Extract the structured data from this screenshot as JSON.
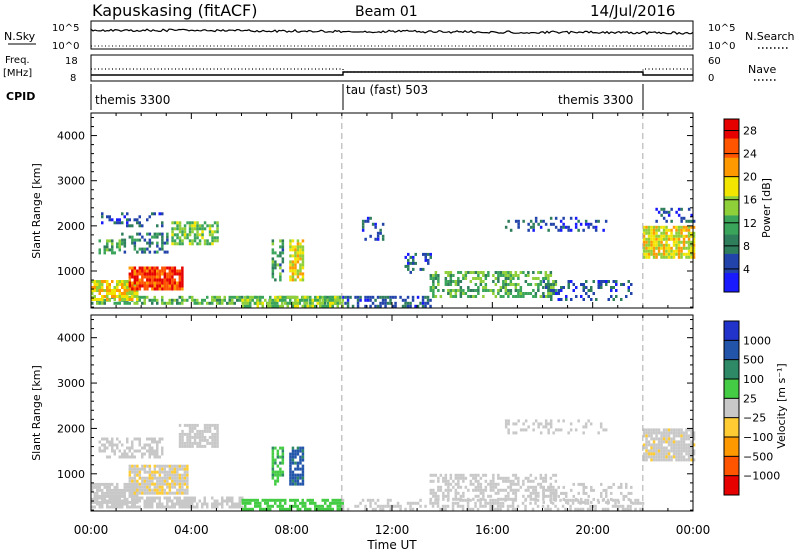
{
  "header": {
    "station": "Kapuskasing (fitACF)",
    "beam": "Beam 01",
    "date": "14/Jul/2016"
  },
  "panels": {
    "nsky_label": "N.Sky",
    "nsearch_label": "N.Search",
    "freq_label": "Freq.",
    "freq_unit": "[MHz]",
    "nave_label": "Nave",
    "cpid_label": "CPID",
    "exp10_5": "10^5",
    "exp10_0": "10^0",
    "freq_ticks": [
      "18",
      "8"
    ],
    "nave_ticks": [
      "60",
      "0"
    ]
  },
  "cpid_segments": [
    {
      "name": "themis 3300",
      "start": 0,
      "end": 10
    },
    {
      "name": "tau (fast) 503",
      "start": 10,
      "end": 22
    },
    {
      "name": "themis 3300",
      "start": 22,
      "end": 24
    }
  ],
  "colors": {
    "power": [
      "#1a1aff",
      "#2244aa",
      "#2e7d5b",
      "#3aa55a",
      "#8fcf3a",
      "#f2e600",
      "#ff9900",
      "#ff5500",
      "#e60000"
    ],
    "velocity": [
      "#e60000",
      "#ff5500",
      "#ff9900",
      "#ffcc33",
      "#c8c8c8",
      "#44cc44",
      "#2e8a66",
      "#2255aa",
      "#2233cc"
    ]
  },
  "chart_data": [
    {
      "type": "heatmap",
      "quantity": "power",
      "ylabel": "Slant Range [km]",
      "xlabel": "Time UT",
      "xlim": [
        0,
        24
      ],
      "ylim": [
        180,
        4500
      ],
      "x_ticks": [
        "00:00",
        "04:00",
        "08:00",
        "12:00",
        "16:00",
        "20:00",
        "00:00"
      ],
      "y_ticks": [
        1000,
        2000,
        3000,
        4000
      ],
      "colorbar_label": "Power [dB]",
      "colorbar_ticks": [
        "4",
        "8",
        "12",
        "16",
        "20",
        "24",
        "28"
      ],
      "colorbar_range": [
        0,
        30
      ],
      "dashed_times": [
        10,
        22
      ],
      "blobs": [
        {
          "t0": 0,
          "t1": 10,
          "r0": 300,
          "r1": 450,
          "level": 12,
          "density": 0.55
        },
        {
          "t0": 0,
          "t1": 1.8,
          "r0": 350,
          "r1": 800,
          "level": 18,
          "density": 0.85
        },
        {
          "t0": 1.5,
          "t1": 3.6,
          "r0": 600,
          "r1": 1100,
          "level": 26,
          "density": 0.9
        },
        {
          "t0": 0.3,
          "t1": 1.2,
          "r0": 1400,
          "r1": 1700,
          "level": 12,
          "density": 0.6
        },
        {
          "t0": 1.2,
          "t1": 3.0,
          "r0": 1400,
          "r1": 1850,
          "level": 8,
          "density": 0.5
        },
        {
          "t0": 3.2,
          "t1": 5.0,
          "r0": 1600,
          "r1": 2100,
          "level": 14,
          "density": 0.7
        },
        {
          "t0": 0.4,
          "t1": 2.8,
          "r0": 2000,
          "r1": 2300,
          "level": 6,
          "density": 0.35
        },
        {
          "t0": 7.2,
          "t1": 7.6,
          "r0": 800,
          "r1": 1700,
          "level": 10,
          "density": 0.6
        },
        {
          "t0": 7.9,
          "t1": 8.4,
          "r0": 800,
          "r1": 1700,
          "level": 18,
          "density": 0.8
        },
        {
          "t0": 6.0,
          "t1": 10.0,
          "r0": 200,
          "r1": 450,
          "level": 14,
          "density": 0.7
        },
        {
          "t0": 10,
          "t1": 13.5,
          "r0": 220,
          "r1": 450,
          "level": 6,
          "density": 0.5
        },
        {
          "t0": 13.5,
          "t1": 18.5,
          "r0": 450,
          "r1": 1000,
          "level": 12,
          "density": 0.55
        },
        {
          "t0": 12.5,
          "t1": 13.5,
          "r0": 1000,
          "r1": 1400,
          "level": 6,
          "density": 0.4
        },
        {
          "t0": 18.0,
          "t1": 21.5,
          "r0": 400,
          "r1": 800,
          "level": 6,
          "density": 0.35
        },
        {
          "t0": 16.5,
          "t1": 20.5,
          "r0": 1900,
          "r1": 2200,
          "level": 5,
          "density": 0.3
        },
        {
          "t0": 22.0,
          "t1": 24,
          "r0": 1300,
          "r1": 2000,
          "level": 18,
          "density": 0.85
        },
        {
          "t0": 22.5,
          "t1": 24,
          "r0": 2100,
          "r1": 2400,
          "level": 5,
          "density": 0.35
        },
        {
          "t0": 10.8,
          "t1": 11.6,
          "r0": 1700,
          "r1": 2200,
          "level": 6,
          "density": 0.25
        }
      ]
    },
    {
      "type": "heatmap",
      "quantity": "velocity",
      "ylabel": "Slant Range [km]",
      "xlabel": "Time UT",
      "xlim": [
        0,
        24
      ],
      "ylim": [
        180,
        4500
      ],
      "x_ticks": [
        "00:00",
        "04:00",
        "08:00",
        "12:00",
        "16:00",
        "20:00",
        "00:00"
      ],
      "y_ticks": [
        1000,
        2000,
        3000,
        4000
      ],
      "colorbar_label": "Velocity [m s⁻¹]",
      "colorbar_ticks": [
        "1000",
        "500",
        "100",
        "25",
        "−25",
        "−100",
        "−500",
        "−1000"
      ],
      "colorbar_range": [
        -1000,
        1000
      ],
      "dashed_times": [
        10,
        22
      ],
      "blobs": [
        {
          "t0": 0,
          "t1": 1.8,
          "r0": 350,
          "r1": 800,
          "level": 0,
          "density": 0.85
        },
        {
          "t0": 1.5,
          "t1": 3.8,
          "r0": 600,
          "r1": 1200,
          "level": -90,
          "density": 0.9
        },
        {
          "t0": 0,
          "t1": 6.0,
          "r0": 250,
          "r1": 500,
          "level": 0,
          "density": 0.75
        },
        {
          "t0": 3.5,
          "t1": 5.0,
          "r0": 1600,
          "r1": 2100,
          "level": 0,
          "density": 0.7
        },
        {
          "t0": 0.3,
          "t1": 2.8,
          "r0": 1400,
          "r1": 1800,
          "level": 0,
          "density": 0.5
        },
        {
          "t0": 7.2,
          "t1": 7.6,
          "r0": 800,
          "r1": 1600,
          "level": 300,
          "density": 0.6
        },
        {
          "t0": 7.9,
          "t1": 8.4,
          "r0": 800,
          "r1": 1600,
          "level": 600,
          "density": 0.8
        },
        {
          "t0": 6.0,
          "t1": 10.0,
          "r0": 200,
          "r1": 450,
          "level": 200,
          "density": 0.7
        },
        {
          "t0": 10,
          "t1": 22,
          "r0": 220,
          "r1": 450,
          "level": 0,
          "density": 0.45
        },
        {
          "t0": 13.5,
          "t1": 18.5,
          "r0": 450,
          "r1": 1000,
          "level": 0,
          "density": 0.55
        },
        {
          "t0": 18.0,
          "t1": 21.5,
          "r0": 400,
          "r1": 800,
          "level": 0,
          "density": 0.3
        },
        {
          "t0": 16.5,
          "t1": 20.5,
          "r0": 1900,
          "r1": 2200,
          "level": 0,
          "density": 0.3
        },
        {
          "t0": 22.0,
          "t1": 24,
          "r0": 1300,
          "r1": 2000,
          "level": -60,
          "density": 0.85
        }
      ]
    }
  ]
}
